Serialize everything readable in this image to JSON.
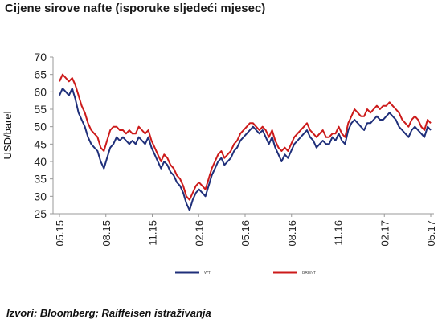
{
  "chart_data": {
    "type": "line",
    "title": "Cijene sirove nafte (isporuke sljedeći mjesec)",
    "ylabel": "USD/barel",
    "xlabel": "",
    "ylim": [
      25,
      70
    ],
    "yticks": [
      25,
      30,
      35,
      40,
      45,
      50,
      55,
      60,
      65,
      70
    ],
    "x_tick_labels": [
      "05.15",
      "08.15",
      "11.15",
      "02.16",
      "05.16",
      "08.16",
      "11.16",
      "02.17",
      "05.17"
    ],
    "grid": false,
    "legend_position": "bottom",
    "series": [
      {
        "name": "WTI",
        "color": "#1f2f7a",
        "values": [
          59,
          61,
          60,
          59,
          61,
          58,
          54,
          52,
          50,
          47,
          45,
          44,
          43,
          40,
          38,
          41,
          44,
          45,
          47,
          46,
          47,
          46,
          45,
          46,
          45,
          47,
          46,
          45,
          47,
          44,
          42,
          40,
          38,
          40,
          39,
          37,
          36,
          34,
          33,
          31,
          28,
          26,
          29,
          31,
          32,
          31,
          30,
          33,
          36,
          38,
          40,
          41,
          39,
          40,
          41,
          43,
          44,
          46,
          47,
          48,
          49,
          50,
          49,
          48,
          49,
          47,
          45,
          47,
          44,
          42,
          40,
          42,
          41,
          43,
          45,
          46,
          47,
          48,
          49,
          47,
          46,
          44,
          45,
          46,
          45,
          45,
          47,
          46,
          48,
          46,
          45,
          49,
          51,
          52,
          51,
          50,
          49,
          51,
          51,
          52,
          53,
          52,
          52,
          53,
          54,
          53,
          52,
          50,
          49,
          48,
          47,
          49,
          50,
          49,
          48,
          47,
          50,
          49
        ]
      },
      {
        "name": "BRENT",
        "color": "#cc1a1a",
        "values": [
          63,
          65,
          64,
          63,
          64,
          62,
          59,
          56,
          54,
          51,
          49,
          48,
          47,
          44,
          43,
          46,
          49,
          50,
          50,
          49,
          49,
          48,
          49,
          48,
          48,
          50,
          49,
          48,
          49,
          46,
          44,
          42,
          40,
          42,
          41,
          39,
          38,
          36,
          35,
          33,
          30,
          29,
          31,
          33,
          34,
          33,
          32,
          35,
          38,
          40,
          42,
          43,
          41,
          42,
          43,
          45,
          46,
          48,
          49,
          50,
          51,
          51,
          50,
          49,
          50,
          49,
          47,
          49,
          46,
          44,
          43,
          44,
          43,
          45,
          47,
          48,
          49,
          50,
          51,
          49,
          48,
          47,
          48,
          49,
          47,
          47,
          48,
          48,
          50,
          48,
          47,
          51,
          53,
          55,
          54,
          53,
          53,
          55,
          54,
          55,
          56,
          55,
          56,
          56,
          57,
          56,
          55,
          54,
          52,
          51,
          50,
          52,
          53,
          52,
          50,
          49,
          52,
          51
        ]
      }
    ]
  },
  "footer": {
    "source": "Izvori: Bloomberg; Raiffeisen istraživanja"
  }
}
